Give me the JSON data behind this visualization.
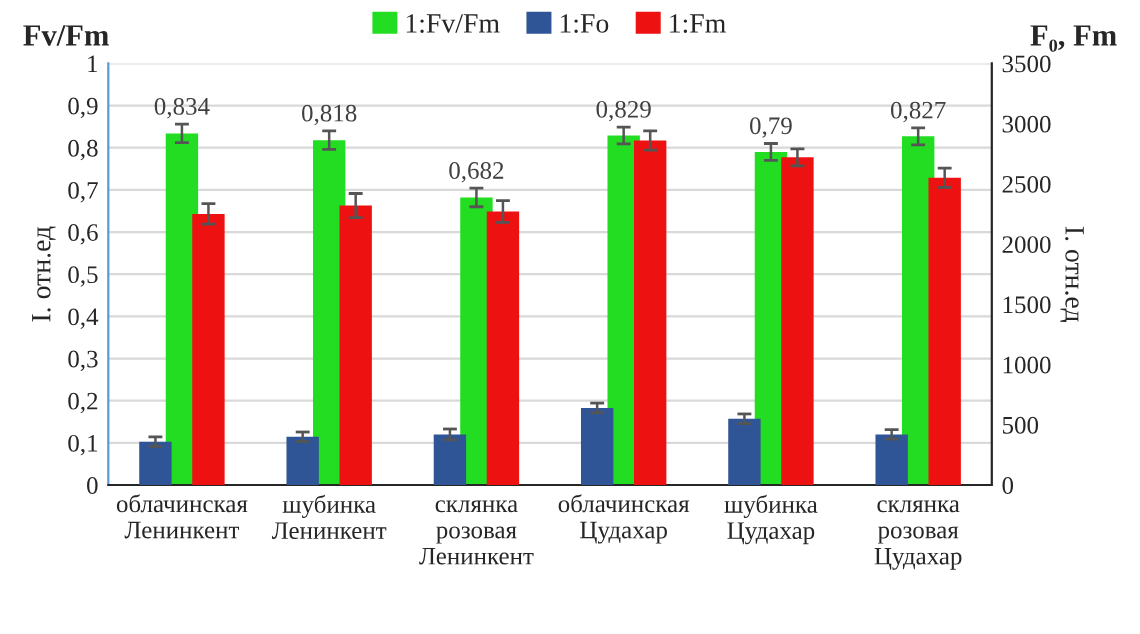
{
  "chart_data": {
    "type": "bar",
    "ylabel": "I. отн.ед",
    "y2label": "I. отн.ед",
    "annotations": [
      "Fv/Fm",
      "F₀, Fm"
    ],
    "categories": [
      "облачинская\nЛенинкент",
      "шубинка\nЛенинкент",
      "склянка\nрозовая\nЛенинкент",
      "облачинская\nЦудахар",
      "шубинка\nЦудахар",
      "склянка\nрозовая\nЦудахар"
    ],
    "series": [
      {
        "name": "1:Fv/Fm",
        "color": "#22dd22",
        "values": [
          0.834,
          0.818,
          0.682,
          0.829,
          0.79,
          0.827
        ],
        "errors": [
          0.022,
          0.022,
          0.022,
          0.02,
          0.02,
          0.02
        ],
        "value_labels": [
          "0,834",
          "0,818",
          "0,682",
          "0,829",
          "0,79",
          "0,827"
        ]
      },
      {
        "name": "1:Fo",
        "color": "#2f5597",
        "axis": "y2",
        "values": [
          360,
          400,
          420,
          640,
          550,
          420
        ],
        "errors": [
          40,
          40,
          45,
          40,
          40,
          40
        ]
      },
      {
        "name": "1:Fm",
        "color": "#ee1111",
        "axis": "y2",
        "values": [
          2250,
          2320,
          2270,
          2860,
          2720,
          2550
        ],
        "errors": [
          85,
          100,
          90,
          80,
          70,
          80
        ]
      }
    ],
    "ylim": [
      0,
      1
    ],
    "yticks": [
      {
        "value": 0,
        "label": "0"
      },
      {
        "value": 0.1,
        "label": "0,1"
      },
      {
        "value": 0.2,
        "label": "0,2"
      },
      {
        "value": 0.3,
        "label": "0,3"
      },
      {
        "value": 0.4,
        "label": "0,4"
      },
      {
        "value": 0.5,
        "label": "0,5"
      },
      {
        "value": 0.6,
        "label": "0,6"
      },
      {
        "value": 0.7,
        "label": "0,7"
      },
      {
        "value": 0.8,
        "label": "0,8"
      },
      {
        "value": 0.9,
        "label": "0,9"
      },
      {
        "value": 1,
        "label": "1"
      }
    ],
    "y2lim": [
      0,
      3500
    ],
    "y2ticks": [
      0,
      500,
      1000,
      1500,
      2000,
      2500,
      3000,
      3500
    ],
    "grid": "y",
    "legend": "top"
  }
}
